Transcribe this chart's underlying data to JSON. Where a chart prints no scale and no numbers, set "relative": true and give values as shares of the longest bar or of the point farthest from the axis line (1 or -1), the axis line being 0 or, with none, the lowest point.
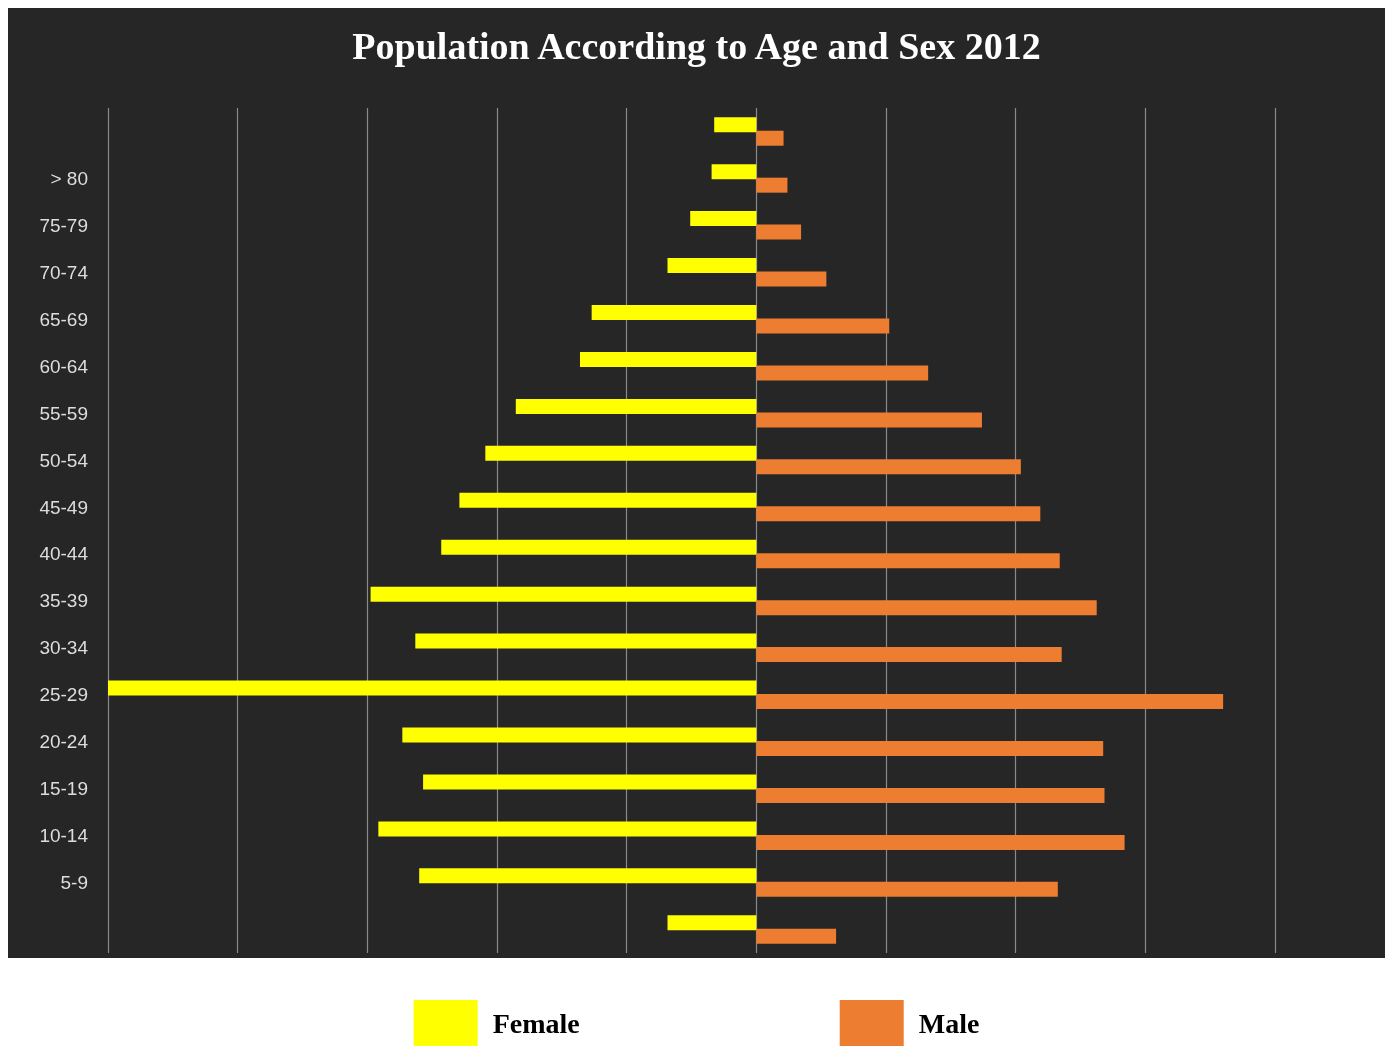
{
  "chart_data": {
    "type": "bar",
    "orientation": "horizontal",
    "relative": true,
    "title": "Population According to Age and Sex 2012",
    "categories": [
      null,
      "> 80",
      "75-79",
      "70-74",
      "65-69",
      "60-64",
      "55-59",
      "50-54",
      "45-49",
      "40-44",
      "35-39",
      "30-34",
      "25-29",
      "20-24",
      "15-19",
      "10-14",
      "5-9",
      null
    ],
    "series": [
      {
        "name": "Female",
        "color": "#ffff00",
        "values": [
          -0.065,
          -0.069,
          -0.102,
          -0.137,
          -0.254,
          -0.272,
          -0.371,
          -0.418,
          -0.458,
          -0.486,
          -0.595,
          -0.526,
          -1,
          -0.546,
          -0.514,
          -0.583,
          -0.52,
          -0.137
        ]
      },
      {
        "name": "Male",
        "color": "#ed7d31",
        "values": [
          0.042,
          0.048,
          0.069,
          0.108,
          0.205,
          0.265,
          0.348,
          0.408,
          0.438,
          0.468,
          0.525,
          0.471,
          0.72,
          0.535,
          0.537,
          0.568,
          0.465,
          0.123
        ]
      }
    ],
    "grid": "x",
    "legend": "bottom"
  }
}
